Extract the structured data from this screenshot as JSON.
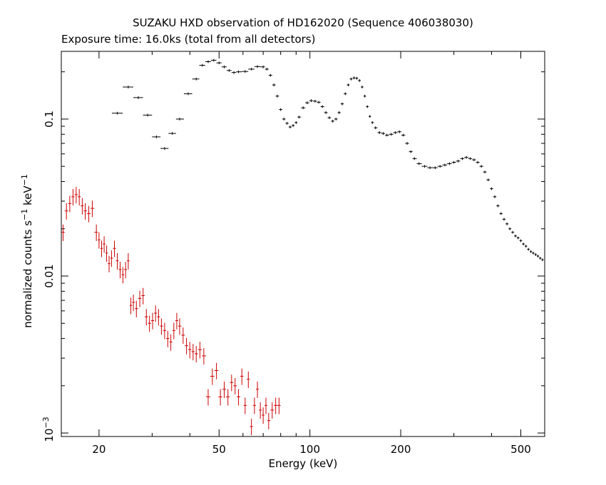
{
  "chart_data": {
    "type": "scatter",
    "title": "SUZAKU HXD observation of HD162020 (Sequence 406038030)",
    "subtitle": "Exposure time: 16.0ks (total from all detectors)",
    "xlabel": "Energy (keV)",
    "ylabel": {
      "base": "normalized counts s",
      "exp1": "−1",
      "mid": " keV",
      "exp2": "−1"
    },
    "x_scale": "log",
    "y_scale": "log",
    "xlim": [
      15,
      600
    ],
    "ylim": [
      0.00095,
      0.27
    ],
    "x_ticks": [
      {
        "value": 20,
        "label": "20"
      },
      {
        "value": 50,
        "label": "50"
      },
      {
        "value": 100,
        "label": "100"
      },
      {
        "value": 200,
        "label": "200"
      },
      {
        "value": 500,
        "label": "500"
      }
    ],
    "y_ticks": [
      {
        "value": 0.1,
        "label": "0.1"
      },
      {
        "value": 0.01,
        "label": "0.01"
      }
    ],
    "y_tick_sci": {
      "value": 0.001,
      "base": "10",
      "exp": "−3"
    },
    "series": [
      {
        "color": "#000000",
        "error_pct": 0.02,
        "points": [
          [
            23,
            0.109
          ],
          [
            25,
            0.16
          ],
          [
            27,
            0.137
          ],
          [
            29,
            0.106
          ],
          [
            31,
            0.077
          ],
          [
            33,
            0.065
          ],
          [
            35,
            0.081
          ],
          [
            37,
            0.1
          ],
          [
            39.5,
            0.145
          ],
          [
            42,
            0.18
          ],
          [
            44,
            0.22
          ],
          [
            46,
            0.232
          ],
          [
            48,
            0.237
          ],
          [
            50,
            0.228
          ],
          [
            52,
            0.215
          ],
          [
            54,
            0.204
          ],
          [
            56,
            0.198
          ],
          [
            58,
            0.2
          ],
          [
            61,
            0.201
          ],
          [
            64,
            0.208
          ],
          [
            67,
            0.216
          ],
          [
            70,
            0.215
          ],
          [
            72,
            0.208
          ],
          [
            74,
            0.19
          ],
          [
            76,
            0.165
          ],
          [
            78,
            0.14
          ],
          [
            80,
            0.115
          ],
          [
            82,
            0.1
          ],
          [
            84,
            0.094
          ],
          [
            86,
            0.089
          ],
          [
            88,
            0.091
          ],
          [
            90,
            0.095
          ],
          [
            92,
            0.103
          ],
          [
            95,
            0.118
          ],
          [
            98,
            0.127
          ],
          [
            101,
            0.131
          ],
          [
            104,
            0.13
          ],
          [
            107,
            0.128
          ],
          [
            110,
            0.12
          ],
          [
            113,
            0.11
          ],
          [
            116,
            0.102
          ],
          [
            119,
            0.097
          ],
          [
            122,
            0.1
          ],
          [
            125,
            0.11
          ],
          [
            128,
            0.125
          ],
          [
            131,
            0.145
          ],
          [
            134,
            0.165
          ],
          [
            137,
            0.18
          ],
          [
            140,
            0.183
          ],
          [
            143,
            0.182
          ],
          [
            146,
            0.176
          ],
          [
            149,
            0.16
          ],
          [
            152,
            0.14
          ],
          [
            155,
            0.12
          ],
          [
            158,
            0.104
          ],
          [
            161,
            0.095
          ],
          [
            165,
            0.088
          ],
          [
            170,
            0.082
          ],
          [
            175,
            0.081
          ],
          [
            180,
            0.079
          ],
          [
            186,
            0.08
          ],
          [
            192,
            0.082
          ],
          [
            198,
            0.083
          ],
          [
            204,
            0.079
          ],
          [
            210,
            0.07
          ],
          [
            216,
            0.062
          ],
          [
            222,
            0.056
          ],
          [
            230,
            0.052
          ],
          [
            240,
            0.05
          ],
          [
            250,
            0.049
          ],
          [
            260,
            0.049
          ],
          [
            270,
            0.05
          ],
          [
            280,
            0.051
          ],
          [
            290,
            0.052
          ],
          [
            300,
            0.053
          ],
          [
            310,
            0.054
          ],
          [
            320,
            0.056
          ],
          [
            330,
            0.057
          ],
          [
            340,
            0.056
          ],
          [
            350,
            0.055
          ],
          [
            360,
            0.053
          ],
          [
            370,
            0.05
          ],
          [
            380,
            0.046
          ],
          [
            390,
            0.041
          ],
          [
            400,
            0.036
          ],
          [
            410,
            0.032
          ],
          [
            420,
            0.028
          ],
          [
            430,
            0.025
          ],
          [
            440,
            0.023
          ],
          [
            450,
            0.0215
          ],
          [
            460,
            0.02
          ],
          [
            470,
            0.019
          ],
          [
            480,
            0.018
          ],
          [
            490,
            0.0175
          ],
          [
            500,
            0.0168
          ],
          [
            510,
            0.016
          ],
          [
            520,
            0.0155
          ],
          [
            530,
            0.0148
          ],
          [
            540,
            0.0143
          ],
          [
            550,
            0.014
          ],
          [
            560,
            0.0137
          ],
          [
            570,
            0.0134
          ],
          [
            580,
            0.013
          ],
          [
            590,
            0.0127
          ]
        ]
      },
      {
        "color": "#cc0000",
        "error_pct": 0.12,
        "points": [
          [
            15.2,
            0.019
          ],
          [
            15.6,
            0.026
          ],
          [
            16.0,
            0.029
          ],
          [
            16.4,
            0.032
          ],
          [
            16.8,
            0.033
          ],
          [
            17.2,
            0.032
          ],
          [
            17.6,
            0.028
          ],
          [
            18.0,
            0.026
          ],
          [
            18.5,
            0.025
          ],
          [
            19.0,
            0.027
          ],
          [
            19.6,
            0.019
          ],
          [
            20.0,
            0.017
          ],
          [
            20.4,
            0.015
          ],
          [
            20.8,
            0.016
          ],
          [
            21.2,
            0.014
          ],
          [
            21.6,
            0.012
          ],
          [
            22.0,
            0.013
          ],
          [
            22.5,
            0.015
          ],
          [
            23.0,
            0.0125
          ],
          [
            23.5,
            0.011
          ],
          [
            24.0,
            0.0102
          ],
          [
            24.5,
            0.011
          ],
          [
            25.0,
            0.0125
          ],
          [
            25.5,
            0.0065
          ],
          [
            26.0,
            0.0068
          ],
          [
            26.6,
            0.0062
          ],
          [
            27.3,
            0.0072
          ],
          [
            28.0,
            0.0075
          ],
          [
            28.7,
            0.0055
          ],
          [
            29.4,
            0.005
          ],
          [
            30.1,
            0.0052
          ],
          [
            30.8,
            0.0058
          ],
          [
            31.5,
            0.0055
          ],
          [
            32.2,
            0.0048
          ],
          [
            33.0,
            0.0045
          ],
          [
            33.8,
            0.004
          ],
          [
            34.6,
            0.0038
          ],
          [
            35.4,
            0.0045
          ],
          [
            36.2,
            0.0052
          ],
          [
            37.0,
            0.0048
          ],
          [
            38.0,
            0.0042
          ],
          [
            39.0,
            0.0036
          ],
          [
            40.0,
            0.0034
          ],
          [
            41.0,
            0.0033
          ],
          [
            42.0,
            0.0032
          ],
          [
            43.2,
            0.0034
          ],
          [
            44.5,
            0.0031
          ],
          [
            46.0,
            0.0017
          ],
          [
            47.5,
            0.0023
          ],
          [
            49.0,
            0.0025
          ],
          [
            50.5,
            0.0017
          ],
          [
            52.0,
            0.0019
          ],
          [
            53.5,
            0.0017
          ],
          [
            55.0,
            0.0021
          ],
          [
            56.5,
            0.002
          ],
          [
            58.0,
            0.0017
          ],
          [
            59.5,
            0.0023
          ],
          [
            61.0,
            0.0015
          ],
          [
            62.5,
            0.0022
          ],
          [
            64.0,
            0.0011
          ],
          [
            65.5,
            0.0015
          ],
          [
            67.0,
            0.0019
          ],
          [
            68.5,
            0.0014
          ],
          [
            70.0,
            0.0013
          ],
          [
            71.5,
            0.0015
          ],
          [
            73.0,
            0.0012
          ],
          [
            75.0,
            0.0014
          ],
          [
            77.0,
            0.0015
          ],
          [
            79.0,
            0.0015
          ]
        ]
      }
    ]
  }
}
